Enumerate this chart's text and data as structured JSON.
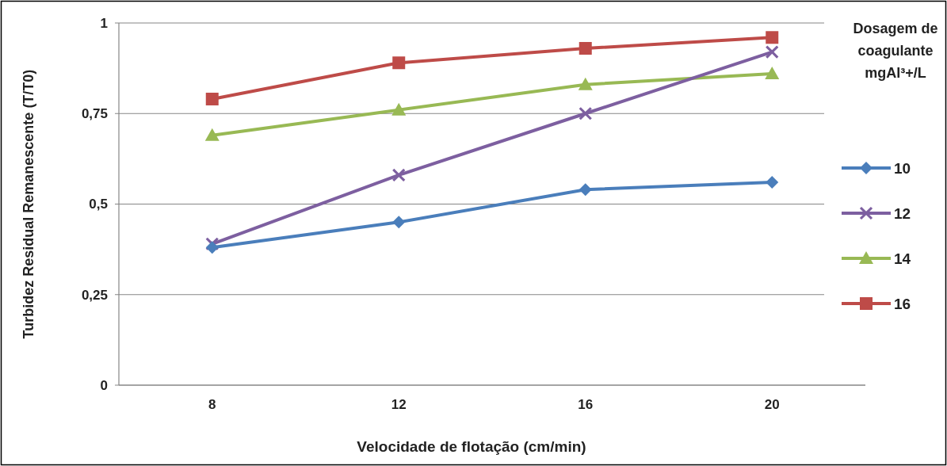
{
  "chart_data": {
    "type": "line",
    "xlabel": "Velocidade de flotação (cm/min)",
    "ylabel": "Turbidez Residual Remanescente (T/T0)",
    "legend_title": "Dosagem de coagulante mgAl³+/L",
    "categories": [
      "8",
      "12",
      "16",
      "20"
    ],
    "ylim": [
      0,
      1
    ],
    "yticks": [
      {
        "value": 0,
        "label": "0"
      },
      {
        "value": 0.25,
        "label": "0,25"
      },
      {
        "value": 0.5,
        "label": "0,5"
      },
      {
        "value": 0.75,
        "label": "0,75"
      },
      {
        "value": 1,
        "label": "1"
      }
    ],
    "grid": "y",
    "legend": "right",
    "line_style": "solid",
    "series": [
      {
        "name": "10",
        "color": "#4a7ebb",
        "marker": "diamond",
        "values": [
          0.38,
          0.45,
          0.54,
          0.56
        ]
      },
      {
        "name": "12",
        "color": "#7d5fa0",
        "marker": "cross",
        "values": [
          0.39,
          0.58,
          0.75,
          0.92
        ]
      },
      {
        "name": "14",
        "color": "#98b954",
        "marker": "triangle",
        "values": [
          0.69,
          0.76,
          0.83,
          0.86
        ]
      },
      {
        "name": "16",
        "color": "#be4b48",
        "marker": "square",
        "values": [
          0.79,
          0.89,
          0.93,
          0.96
        ]
      }
    ]
  }
}
